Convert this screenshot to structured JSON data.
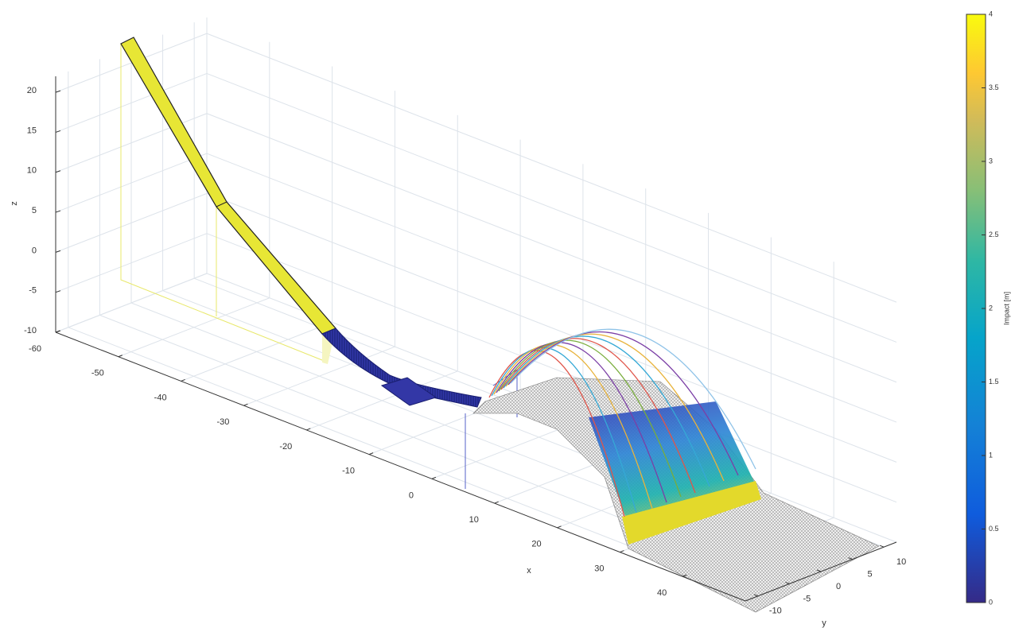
{
  "chart_data": {
    "type": "surface3d",
    "xlabel": "x",
    "ylabel": "y",
    "zlabel": "z",
    "xlim": [
      -60,
      50
    ],
    "xticks": [
      -60,
      -50,
      -40,
      -30,
      -20,
      -10,
      0,
      10,
      20,
      30,
      40
    ],
    "ylim": [
      -12,
      12
    ],
    "yticks": [
      -10,
      -5,
      0,
      5,
      10
    ],
    "zlim": [
      -10,
      22
    ],
    "zticks": [
      -10,
      -5,
      0,
      5,
      10,
      15,
      20
    ],
    "grid": true,
    "colorbar": {
      "label": "Impact [m]",
      "lim": [
        0,
        4
      ],
      "ticks": [
        0,
        0.5,
        1,
        1.5,
        2,
        2.5,
        3,
        3.5,
        4
      ]
    }
  }
}
